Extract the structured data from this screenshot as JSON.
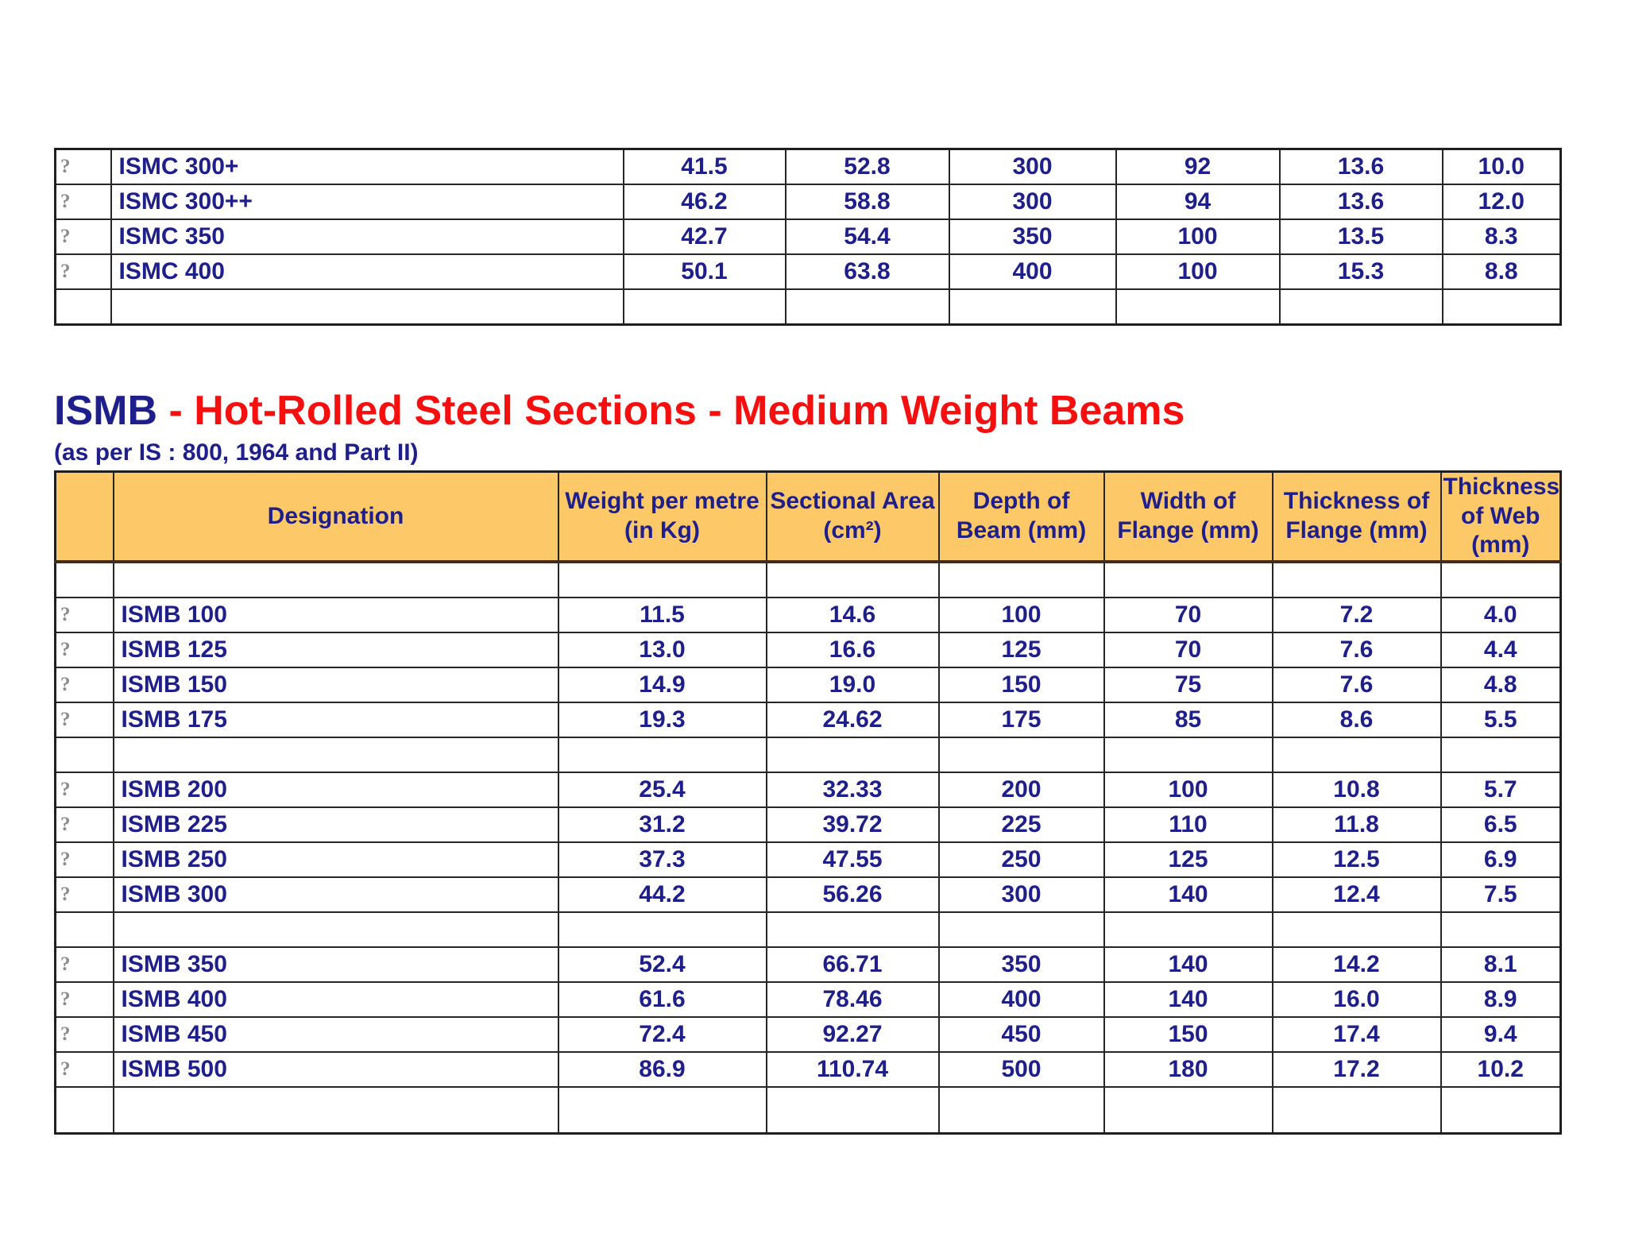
{
  "colors": {
    "navy": "#1f1f8c",
    "red": "#f50f0f",
    "header_bg": "#fdc968",
    "border": "#262626",
    "placeholder_gray": "#8c8c8c"
  },
  "ismc_table": {
    "placeholder_icon": "?",
    "rows": [
      {
        "designation": "ISMC 300+",
        "values": [
          "41.5",
          "52.8",
          "300",
          "92",
          "13.6",
          "10.0"
        ]
      },
      {
        "designation": "ISMC 300++",
        "values": [
          "46.2",
          "58.8",
          "300",
          "94",
          "13.6",
          "12.0"
        ]
      },
      {
        "designation": "ISMC 350",
        "values": [
          "42.7",
          "54.4",
          "350",
          "100",
          "13.5",
          "8.3"
        ]
      },
      {
        "designation": "ISMC 400",
        "values": [
          "50.1",
          "63.8",
          "400",
          "100",
          "15.3",
          "8.8"
        ]
      }
    ]
  },
  "title": {
    "prefix": "ISMB",
    "rest": " - Hot-Rolled Steel Sections - Medium Weight Beams",
    "subtitle": "(as per IS : 800, 1964 and Part II)"
  },
  "ismb_table": {
    "placeholder_icon": "?",
    "headers": [
      "Designation",
      "Weight per metre (in Kg)",
      "Sectional Area (cm²)",
      "Depth of Beam (mm)",
      "Width of Flange (mm)",
      "Thickness of Flange (mm)",
      "Thickness of Web (mm)"
    ],
    "groups": [
      [
        {
          "designation": "ISMB 100",
          "values": [
            "11.5",
            "14.6",
            "100",
            "70",
            "7.2",
            "4.0"
          ]
        },
        {
          "designation": "ISMB 125",
          "values": [
            "13.0",
            "16.6",
            "125",
            "70",
            "7.6",
            "4.4"
          ]
        },
        {
          "designation": "ISMB 150",
          "values": [
            "14.9",
            "19.0",
            "150",
            "75",
            "7.6",
            "4.8"
          ]
        },
        {
          "designation": "ISMB 175",
          "values": [
            "19.3",
            "24.62",
            "175",
            "85",
            "8.6",
            "5.5"
          ]
        }
      ],
      [
        {
          "designation": "ISMB 200",
          "values": [
            "25.4",
            "32.33",
            "200",
            "100",
            "10.8",
            "5.7"
          ]
        },
        {
          "designation": "ISMB 225",
          "values": [
            "31.2",
            "39.72",
            "225",
            "110",
            "11.8",
            "6.5"
          ]
        },
        {
          "designation": "ISMB 250",
          "values": [
            "37.3",
            "47.55",
            "250",
            "125",
            "12.5",
            "6.9"
          ]
        },
        {
          "designation": "ISMB 300",
          "values": [
            "44.2",
            "56.26",
            "300",
            "140",
            "12.4",
            "7.5"
          ]
        }
      ],
      [
        {
          "designation": "ISMB 350",
          "values": [
            "52.4",
            "66.71",
            "350",
            "140",
            "14.2",
            "8.1"
          ]
        },
        {
          "designation": "ISMB 400",
          "values": [
            "61.6",
            "78.46",
            "400",
            "140",
            "16.0",
            "8.9"
          ]
        },
        {
          "designation": "ISMB 450",
          "values": [
            "72.4",
            "92.27",
            "450",
            "150",
            "17.4",
            "9.4"
          ]
        },
        {
          "designation": "ISMB 500",
          "values": [
            "86.9",
            "110.74",
            "500",
            "180",
            "17.2",
            "10.2"
          ]
        }
      ]
    ]
  }
}
